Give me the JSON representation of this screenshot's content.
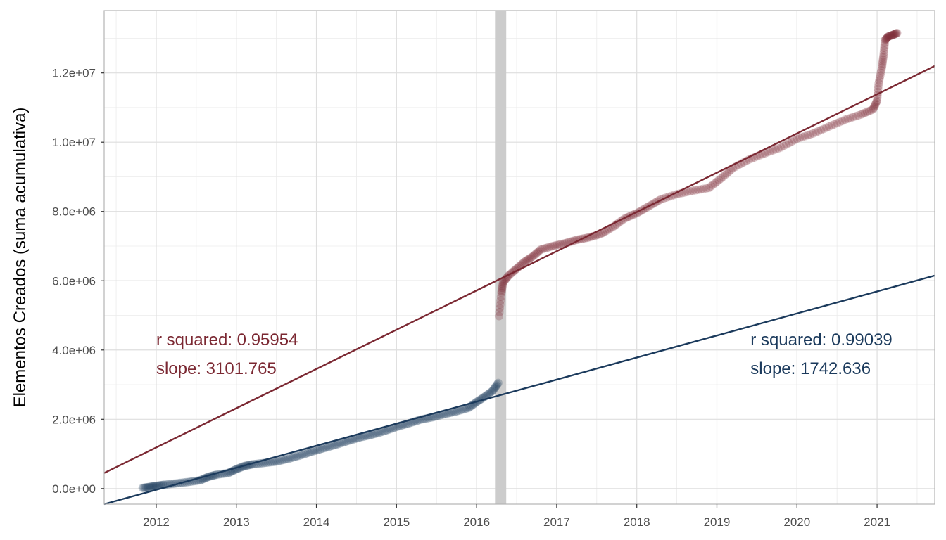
{
  "chart_data": {
    "type": "scatter",
    "title": "",
    "xlabel": "",
    "ylabel": "Elementos Creados (suma acumulativa)",
    "xlim": [
      2011.35,
      2021.72
    ],
    "ylim": [
      -450000,
      13800000
    ],
    "grid": true,
    "legend": "none",
    "x_ticks": [
      2012,
      2013,
      2014,
      2015,
      2016,
      2017,
      2018,
      2019,
      2020,
      2021
    ],
    "x_tick_labels": [
      "2012",
      "2013",
      "2014",
      "2015",
      "2016",
      "2017",
      "2018",
      "2019",
      "2020",
      "2021"
    ],
    "y_ticks": [
      0,
      2000000,
      4000000,
      6000000,
      8000000,
      10000000,
      12000000
    ],
    "y_tick_labels": [
      "0.0e+00",
      "2.0e+06",
      "4.0e+06",
      "6.0e+06",
      "8.0e+06",
      "1.0e+07",
      "1.2e+07"
    ],
    "highlight_band": {
      "x_range": [
        2016.23,
        2016.37
      ],
      "color": "#cccccc"
    },
    "series": [
      {
        "color": "#1b3a5c",
        "point_opacity": 0.25,
        "points": [
          [
            2011.83,
            20000
          ],
          [
            2011.92,
            50000
          ],
          [
            2012.0,
            80000
          ],
          [
            2012.1,
            110000
          ],
          [
            2012.25,
            150000
          ],
          [
            2012.4,
            190000
          ],
          [
            2012.55,
            240000
          ],
          [
            2012.65,
            340000
          ],
          [
            2012.75,
            400000
          ],
          [
            2012.9,
            450000
          ],
          [
            2013.0,
            560000
          ],
          [
            2013.1,
            650000
          ],
          [
            2013.2,
            700000
          ],
          [
            2013.35,
            740000
          ],
          [
            2013.5,
            780000
          ],
          [
            2013.65,
            860000
          ],
          [
            2013.8,
            960000
          ],
          [
            2013.95,
            1070000
          ],
          [
            2014.1,
            1170000
          ],
          [
            2014.25,
            1270000
          ],
          [
            2014.4,
            1380000
          ],
          [
            2014.55,
            1480000
          ],
          [
            2014.7,
            1560000
          ],
          [
            2014.85,
            1660000
          ],
          [
            2015.0,
            1780000
          ],
          [
            2015.15,
            1880000
          ],
          [
            2015.3,
            1990000
          ],
          [
            2015.45,
            2060000
          ],
          [
            2015.6,
            2150000
          ],
          [
            2015.75,
            2230000
          ],
          [
            2015.9,
            2330000
          ],
          [
            2016.0,
            2500000
          ],
          [
            2016.1,
            2650000
          ],
          [
            2016.2,
            2820000
          ],
          [
            2016.27,
            3050000
          ]
        ],
        "fit": {
          "x": [
            2011.35,
            2021.72
          ],
          "y": [
            -450000,
            6150000
          ]
        },
        "annotation": {
          "r_squared": "r squared: 0.99039",
          "slope": "slope: 1742.636",
          "x": 2019.42,
          "y_r": 4300000,
          "y_s": 3470000
        }
      },
      {
        "color": "#7b2832",
        "point_opacity": 0.25,
        "points": [
          [
            2016.28,
            4980000
          ],
          [
            2016.31,
            5650000
          ],
          [
            2016.33,
            5950000
          ],
          [
            2016.4,
            6150000
          ],
          [
            2016.5,
            6350000
          ],
          [
            2016.6,
            6550000
          ],
          [
            2016.7,
            6700000
          ],
          [
            2016.8,
            6900000
          ],
          [
            2016.95,
            7000000
          ],
          [
            2017.1,
            7080000
          ],
          [
            2017.25,
            7180000
          ],
          [
            2017.4,
            7250000
          ],
          [
            2017.55,
            7350000
          ],
          [
            2017.7,
            7550000
          ],
          [
            2017.85,
            7800000
          ],
          [
            2018.0,
            7950000
          ],
          [
            2018.15,
            8150000
          ],
          [
            2018.3,
            8350000
          ],
          [
            2018.5,
            8500000
          ],
          [
            2018.7,
            8600000
          ],
          [
            2018.9,
            8680000
          ],
          [
            2019.05,
            8950000
          ],
          [
            2019.2,
            9250000
          ],
          [
            2019.4,
            9500000
          ],
          [
            2019.6,
            9680000
          ],
          [
            2019.8,
            9850000
          ],
          [
            2020.0,
            10100000
          ],
          [
            2020.2,
            10250000
          ],
          [
            2020.4,
            10450000
          ],
          [
            2020.6,
            10650000
          ],
          [
            2020.8,
            10800000
          ],
          [
            2020.95,
            10950000
          ],
          [
            2021.0,
            11200000
          ],
          [
            2021.02,
            11700000
          ],
          [
            2021.06,
            12150000
          ],
          [
            2021.08,
            12500000
          ],
          [
            2021.1,
            12950000
          ],
          [
            2021.14,
            13050000
          ],
          [
            2021.2,
            13100000
          ],
          [
            2021.25,
            13150000
          ]
        ],
        "fit": {
          "x": [
            2011.35,
            2021.72
          ],
          "y": [
            450000,
            12200000
          ]
        },
        "annotation": {
          "r_squared": "r squared: 0.95954",
          "slope": "slope: 3101.765",
          "x": 2012.0,
          "y_r": 4300000,
          "y_s": 3470000
        }
      }
    ]
  }
}
